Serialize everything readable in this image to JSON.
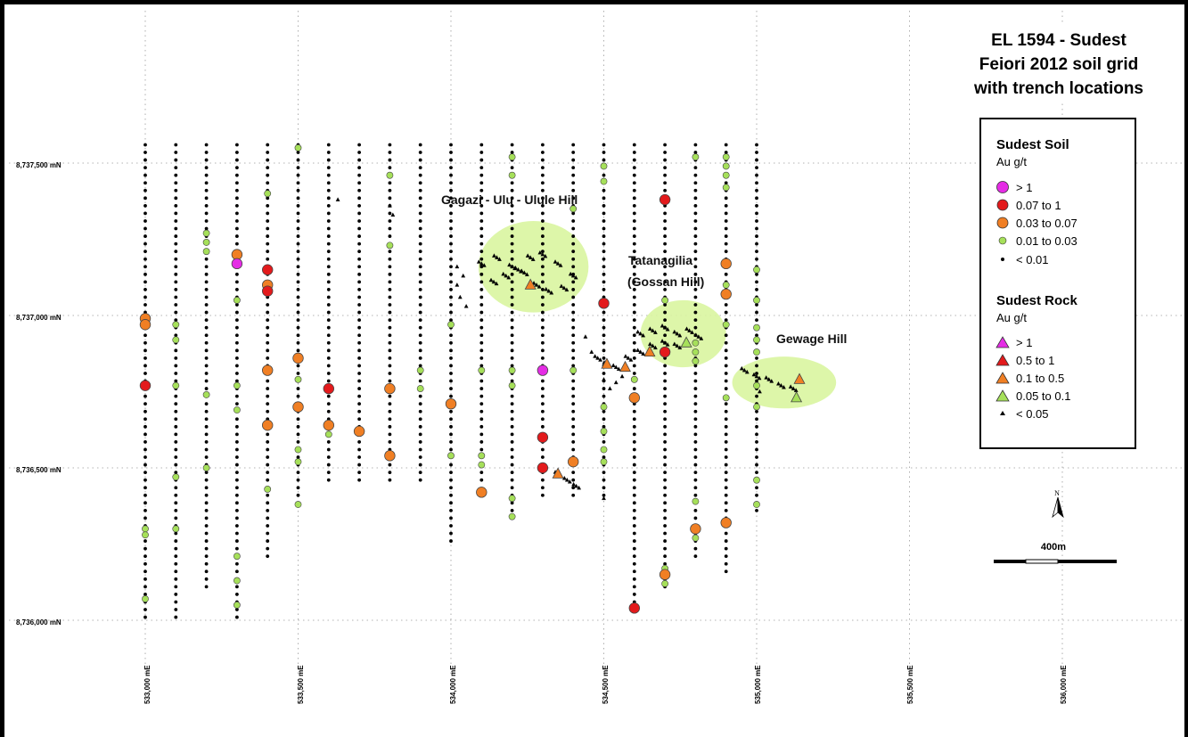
{
  "title": {
    "lines": [
      "EL 1594 - Sudest",
      "Feiori 2012 soil grid",
      "with trench locations"
    ]
  },
  "axes": {
    "northing_labels": [
      "8,737,500 mN",
      "8,737,000 mN",
      "8,736,500 mN",
      "8,736,000 mN"
    ],
    "easting_labels": [
      "533,000 mE",
      "533,500 mE",
      "534,000 mE",
      "534,500 mE",
      "535,000 mE",
      "535,500 mE",
      "536,000 mE"
    ]
  },
  "areas": {
    "gagazi": "Gagazi - Ulu - Ulule Hill",
    "tatanagilia_1": "Tatanagilia",
    "tatanagilia_2": "(Gossan Hill)",
    "gewage": "Gewage Hill"
  },
  "legend": {
    "soil_heading": "Sudest Soil",
    "soil_unit": "Au g/t",
    "soil_items": [
      {
        "label": "> 1",
        "color": "#e52ce5"
      },
      {
        "label": "0.07  to 1",
        "color": "#e31a1c"
      },
      {
        "label": "0.03 to 0.07",
        "color": "#f07f24"
      },
      {
        "label": "0.01 to 0.03",
        "color": "#a6e05a"
      },
      {
        "label": "<  0.01",
        "color": "#000000"
      }
    ],
    "rock_heading": "Sudest Rock",
    "rock_unit": "Au g/t",
    "rock_items": [
      {
        "label": "> 1",
        "color": "#e52ce5"
      },
      {
        "label": "0.5   to 1",
        "color": "#e31a1c"
      },
      {
        "label": "0.1    to 0.5",
        "color": "#f07f24"
      },
      {
        "label": "0.05 to 0.1",
        "color": "#a6e05a"
      },
      {
        "label": "< 0.05",
        "color": "#000000"
      }
    ]
  },
  "scale_bar": {
    "label": "400m"
  },
  "north_arrow": {
    "label": "N"
  },
  "colors": {
    "soil_gt1": "#e52ce5",
    "soil_007_1": "#e31a1c",
    "soil_003_007": "#f07f24",
    "soil_001_003": "#a6e05a",
    "halo": "#d9f5a0",
    "grid": "#9a9a9a"
  },
  "soil_lines": [
    {
      "e": 533000,
      "n_top": 8737560,
      "n_bot": 8736000
    },
    {
      "e": 533100,
      "n_top": 8737560,
      "n_bot": 8736000
    },
    {
      "e": 533200,
      "n_top": 8737560,
      "n_bot": 8736100
    },
    {
      "e": 533300,
      "n_top": 8737560,
      "n_bot": 8736000
    },
    {
      "e": 533400,
      "n_top": 8737560,
      "n_bot": 8736200
    },
    {
      "e": 533500,
      "n_top": 8737560,
      "n_bot": 8736400
    },
    {
      "e": 533600,
      "n_top": 8737560,
      "n_bot": 8736450
    },
    {
      "e": 533700,
      "n_top": 8737560,
      "n_bot": 8736450
    },
    {
      "e": 533800,
      "n_top": 8737560,
      "n_bot": 8736450
    },
    {
      "e": 533900,
      "n_top": 8737560,
      "n_bot": 8736450
    },
    {
      "e": 534000,
      "n_top": 8737560,
      "n_bot": 8736250
    },
    {
      "e": 534100,
      "n_top": 8737560,
      "n_bot": 8736450
    },
    {
      "e": 534200,
      "n_top": 8737560,
      "n_bot": 8736350
    },
    {
      "e": 534300,
      "n_top": 8737560,
      "n_bot": 8736400
    },
    {
      "e": 534400,
      "n_top": 8737560,
      "n_bot": 8736400
    },
    {
      "e": 534500,
      "n_top": 8737560,
      "n_bot": 8736400
    },
    {
      "e": 534600,
      "n_top": 8737560,
      "n_bot": 8736050
    },
    {
      "e": 534700,
      "n_top": 8737560,
      "n_bot": 8736100
    },
    {
      "e": 534800,
      "n_top": 8737560,
      "n_bot": 8736200
    },
    {
      "e": 534900,
      "n_top": 8737560,
      "n_bot": 8736150
    },
    {
      "e": 535000,
      "n_top": 8737560,
      "n_bot": 8736350
    }
  ],
  "soil_anomalies": [
    {
      "e": 533000,
      "n": 8736990,
      "cls": "soil_003_007"
    },
    {
      "e": 533000,
      "n": 8736970,
      "cls": "soil_003_007"
    },
    {
      "e": 533000,
      "n": 8736770,
      "cls": "soil_007_1"
    },
    {
      "e": 533000,
      "n": 8736300,
      "cls": "soil_001_003"
    },
    {
      "e": 533000,
      "n": 8736280,
      "cls": "soil_001_003"
    },
    {
      "e": 533000,
      "n": 8736070,
      "cls": "soil_001_003"
    },
    {
      "e": 533100,
      "n": 8736970,
      "cls": "soil_001_003"
    },
    {
      "e": 533100,
      "n": 8736920,
      "cls": "soil_001_003"
    },
    {
      "e": 533100,
      "n": 8736770,
      "cls": "soil_001_003"
    },
    {
      "e": 533100,
      "n": 8736470,
      "cls": "soil_001_003"
    },
    {
      "e": 533100,
      "n": 8736300,
      "cls": "soil_001_003"
    },
    {
      "e": 533200,
      "n": 8737270,
      "cls": "soil_001_003"
    },
    {
      "e": 533200,
      "n": 8737240,
      "cls": "soil_001_003"
    },
    {
      "e": 533200,
      "n": 8737210,
      "cls": "soil_001_003"
    },
    {
      "e": 533200,
      "n": 8736740,
      "cls": "soil_001_003"
    },
    {
      "e": 533200,
      "n": 8736500,
      "cls": "soil_001_003"
    },
    {
      "e": 533300,
      "n": 8737200,
      "cls": "soil_003_007"
    },
    {
      "e": 533300,
      "n": 8737170,
      "cls": "soil_gt1"
    },
    {
      "e": 533300,
      "n": 8737050,
      "cls": "soil_001_003"
    },
    {
      "e": 533300,
      "n": 8736770,
      "cls": "soil_001_003"
    },
    {
      "e": 533300,
      "n": 8736690,
      "cls": "soil_001_003"
    },
    {
      "e": 533300,
      "n": 8736210,
      "cls": "soil_001_003"
    },
    {
      "e": 533300,
      "n": 8736130,
      "cls": "soil_001_003"
    },
    {
      "e": 533300,
      "n": 8736050,
      "cls": "soil_001_003"
    },
    {
      "e": 533400,
      "n": 8737400,
      "cls": "soil_001_003"
    },
    {
      "e": 533400,
      "n": 8737150,
      "cls": "soil_007_1"
    },
    {
      "e": 533400,
      "n": 8737100,
      "cls": "soil_003_007"
    },
    {
      "e": 533400,
      "n": 8737080,
      "cls": "soil_007_1"
    },
    {
      "e": 533400,
      "n": 8736820,
      "cls": "soil_003_007"
    },
    {
      "e": 533400,
      "n": 8736640,
      "cls": "soil_003_007"
    },
    {
      "e": 533400,
      "n": 8736430,
      "cls": "soil_001_003"
    },
    {
      "e": 533500,
      "n": 8737550,
      "cls": "soil_001_003"
    },
    {
      "e": 533500,
      "n": 8736860,
      "cls": "soil_003_007"
    },
    {
      "e": 533500,
      "n": 8736790,
      "cls": "soil_001_003"
    },
    {
      "e": 533500,
      "n": 8736700,
      "cls": "soil_003_007"
    },
    {
      "e": 533500,
      "n": 8736560,
      "cls": "soil_001_003"
    },
    {
      "e": 533500,
      "n": 8736520,
      "cls": "soil_001_003"
    },
    {
      "e": 533500,
      "n": 8736380,
      "cls": "soil_001_003"
    },
    {
      "e": 533600,
      "n": 8736760,
      "cls": "soil_007_1"
    },
    {
      "e": 533600,
      "n": 8736640,
      "cls": "soil_003_007"
    },
    {
      "e": 533600,
      "n": 8736610,
      "cls": "soil_001_003"
    },
    {
      "e": 533700,
      "n": 8736620,
      "cls": "soil_003_007"
    },
    {
      "e": 533800,
      "n": 8737460,
      "cls": "soil_001_003"
    },
    {
      "e": 533800,
      "n": 8737230,
      "cls": "soil_001_003"
    },
    {
      "e": 533800,
      "n": 8736760,
      "cls": "soil_003_007"
    },
    {
      "e": 533800,
      "n": 8736540,
      "cls": "soil_003_007"
    },
    {
      "e": 533900,
      "n": 8736820,
      "cls": "soil_001_003"
    },
    {
      "e": 533900,
      "n": 8736760,
      "cls": "soil_001_003"
    },
    {
      "e": 534000,
      "n": 8736970,
      "cls": "soil_001_003"
    },
    {
      "e": 534000,
      "n": 8736710,
      "cls": "soil_003_007"
    },
    {
      "e": 534000,
      "n": 8736540,
      "cls": "soil_001_003"
    },
    {
      "e": 534100,
      "n": 8736820,
      "cls": "soil_001_003"
    },
    {
      "e": 534100,
      "n": 8736540,
      "cls": "soil_001_003"
    },
    {
      "e": 534100,
      "n": 8736510,
      "cls": "soil_001_003"
    },
    {
      "e": 534100,
      "n": 8736420,
      "cls": "soil_003_007"
    },
    {
      "e": 534200,
      "n": 8737520,
      "cls": "soil_001_003"
    },
    {
      "e": 534200,
      "n": 8737460,
      "cls": "soil_001_003"
    },
    {
      "e": 534200,
      "n": 8736820,
      "cls": "soil_001_003"
    },
    {
      "e": 534200,
      "n": 8736770,
      "cls": "soil_001_003"
    },
    {
      "e": 534200,
      "n": 8736400,
      "cls": "soil_001_003"
    },
    {
      "e": 534200,
      "n": 8736340,
      "cls": "soil_001_003"
    },
    {
      "e": 534300,
      "n": 8736820,
      "cls": "soil_gt1"
    },
    {
      "e": 534300,
      "n": 8736600,
      "cls": "soil_007_1"
    },
    {
      "e": 534300,
      "n": 8736500,
      "cls": "soil_007_1"
    },
    {
      "e": 534400,
      "n": 8737350,
      "cls": "soil_001_003"
    },
    {
      "e": 534400,
      "n": 8736820,
      "cls": "soil_001_003"
    },
    {
      "e": 534400,
      "n": 8736520,
      "cls": "soil_003_007"
    },
    {
      "e": 534500,
      "n": 8737490,
      "cls": "soil_001_003"
    },
    {
      "e": 534500,
      "n": 8737440,
      "cls": "soil_001_003"
    },
    {
      "e": 534500,
      "n": 8737040,
      "cls": "soil_007_1"
    },
    {
      "e": 534500,
      "n": 8736700,
      "cls": "soil_001_003"
    },
    {
      "e": 534500,
      "n": 8736620,
      "cls": "soil_001_003"
    },
    {
      "e": 534500,
      "n": 8736560,
      "cls": "soil_001_003"
    },
    {
      "e": 534500,
      "n": 8736520,
      "cls": "soil_001_003"
    },
    {
      "e": 534600,
      "n": 8736790,
      "cls": "soil_001_003"
    },
    {
      "e": 534600,
      "n": 8736730,
      "cls": "soil_003_007"
    },
    {
      "e": 534600,
      "n": 8736040,
      "cls": "soil_007_1"
    },
    {
      "e": 534700,
      "n": 8737380,
      "cls": "soil_007_1"
    },
    {
      "e": 534700,
      "n": 8737050,
      "cls": "soil_001_003"
    },
    {
      "e": 534700,
      "n": 8736880,
      "cls": "soil_007_1"
    },
    {
      "e": 534700,
      "n": 8736170,
      "cls": "soil_001_003"
    },
    {
      "e": 534700,
      "n": 8736150,
      "cls": "soil_003_007"
    },
    {
      "e": 534700,
      "n": 8736120,
      "cls": "soil_001_003"
    },
    {
      "e": 534800,
      "n": 8737520,
      "cls": "soil_001_003"
    },
    {
      "e": 534800,
      "n": 8736910,
      "cls": "soil_001_003"
    },
    {
      "e": 534800,
      "n": 8736880,
      "cls": "soil_001_003"
    },
    {
      "e": 534800,
      "n": 8736850,
      "cls": "soil_001_003"
    },
    {
      "e": 534800,
      "n": 8736390,
      "cls": "soil_001_003"
    },
    {
      "e": 534800,
      "n": 8736300,
      "cls": "soil_003_007"
    },
    {
      "e": 534800,
      "n": 8736270,
      "cls": "soil_001_003"
    },
    {
      "e": 534900,
      "n": 8737520,
      "cls": "soil_001_003"
    },
    {
      "e": 534900,
      "n": 8737490,
      "cls": "soil_001_003"
    },
    {
      "e": 534900,
      "n": 8737460,
      "cls": "soil_001_003"
    },
    {
      "e": 534900,
      "n": 8737420,
      "cls": "soil_001_003"
    },
    {
      "e": 534900,
      "n": 8737170,
      "cls": "soil_003_007"
    },
    {
      "e": 534900,
      "n": 8737100,
      "cls": "soil_001_003"
    },
    {
      "e": 534900,
      "n": 8737070,
      "cls": "soil_003_007"
    },
    {
      "e": 534900,
      "n": 8736970,
      "cls": "soil_001_003"
    },
    {
      "e": 534900,
      "n": 8736730,
      "cls": "soil_001_003"
    },
    {
      "e": 534900,
      "n": 8736320,
      "cls": "soil_003_007"
    },
    {
      "e": 535000,
      "n": 8737150,
      "cls": "soil_001_003"
    },
    {
      "e": 535000,
      "n": 8737050,
      "cls": "soil_001_003"
    },
    {
      "e": 535000,
      "n": 8736960,
      "cls": "soil_001_003"
    },
    {
      "e": 535000,
      "n": 8736920,
      "cls": "soil_001_003"
    },
    {
      "e": 535000,
      "n": 8736880,
      "cls": "soil_001_003"
    },
    {
      "e": 535000,
      "n": 8736770,
      "cls": "soil_001_003"
    },
    {
      "e": 535000,
      "n": 8736700,
      "cls": "soil_001_003"
    },
    {
      "e": 535000,
      "n": 8736460,
      "cls": "soil_001_003"
    },
    {
      "e": 535000,
      "n": 8736380,
      "cls": "soil_001_003"
    }
  ],
  "halos": [
    {
      "e": 534270,
      "n": 8737160,
      "re": 180,
      "rn": 150
    },
    {
      "e": 534760,
      "n": 8736940,
      "re": 140,
      "rn": 110
    },
    {
      "e": 535090,
      "n": 8736780,
      "re": 170,
      "rn": 85
    }
  ],
  "rock_traces": [
    {
      "e": [
        534100,
        534150,
        534200,
        534240,
        534280,
        534320,
        534370,
        534400,
        534350,
        534300,
        534260,
        534220,
        534180,
        534140
      ],
      "n": [
        8737170,
        8737190,
        8737160,
        8737140,
        8737100,
        8737080,
        8737090,
        8737130,
        8737170,
        8737200,
        8737190,
        8737150,
        8737130,
        8737110
      ]
    },
    {
      "e": [
        534620,
        534660,
        534700,
        534740,
        534780,
        534810
      ],
      "n": [
        8736940,
        8736950,
        8736960,
        8736940,
        8736950,
        8736930
      ]
    },
    {
      "e": [
        534480,
        534510,
        534540,
        534580,
        534620,
        534660,
        534700,
        534740
      ],
      "n": [
        8736860,
        8736840,
        8736830,
        8736860,
        8736880,
        8736900,
        8736910,
        8736900
      ]
    },
    {
      "e": [
        534960,
        535000,
        535040,
        535080,
        535120
      ],
      "n": [
        8736820,
        8736800,
        8736790,
        8736770,
        8736760
      ]
    },
    {
      "e": [
        534350,
        534380,
        534410
      ],
      "n": [
        8736480,
        8736460,
        8736440
      ]
    }
  ],
  "rock_scatter": [
    {
      "e": 533630,
      "n": 8737380
    },
    {
      "e": 533800,
      "n": 8737360
    },
    {
      "e": 533810,
      "n": 8737330
    },
    {
      "e": 534020,
      "n": 8737160
    },
    {
      "e": 534040,
      "n": 8737130
    },
    {
      "e": 534020,
      "n": 8737100
    },
    {
      "e": 534030,
      "n": 8737060
    },
    {
      "e": 534050,
      "n": 8737030
    },
    {
      "e": 534440,
      "n": 8736930
    },
    {
      "e": 534460,
      "n": 8736880
    },
    {
      "e": 534560,
      "n": 8736800
    },
    {
      "e": 534500,
      "n": 8736790
    },
    {
      "e": 534540,
      "n": 8736780
    },
    {
      "e": 534520,
      "n": 8736760
    },
    {
      "e": 534500,
      "n": 8736400
    },
    {
      "e": 535010,
      "n": 8736750
    }
  ],
  "rock_samples": [
    {
      "e": 534260,
      "n": 8737100,
      "cls": "soil_003_007"
    },
    {
      "e": 534510,
      "n": 8736840,
      "cls": "soil_003_007"
    },
    {
      "e": 534570,
      "n": 8736830,
      "cls": "soil_003_007"
    },
    {
      "e": 534650,
      "n": 8736880,
      "cls": "soil_003_007"
    },
    {
      "e": 534350,
      "n": 8736480,
      "cls": "soil_003_007"
    },
    {
      "e": 535140,
      "n": 8736790,
      "cls": "soil_003_007"
    },
    {
      "e": 534770,
      "n": 8736910,
      "cls": "soil_001_003"
    },
    {
      "e": 535130,
      "n": 8736730,
      "cls": "soil_001_003"
    }
  ]
}
